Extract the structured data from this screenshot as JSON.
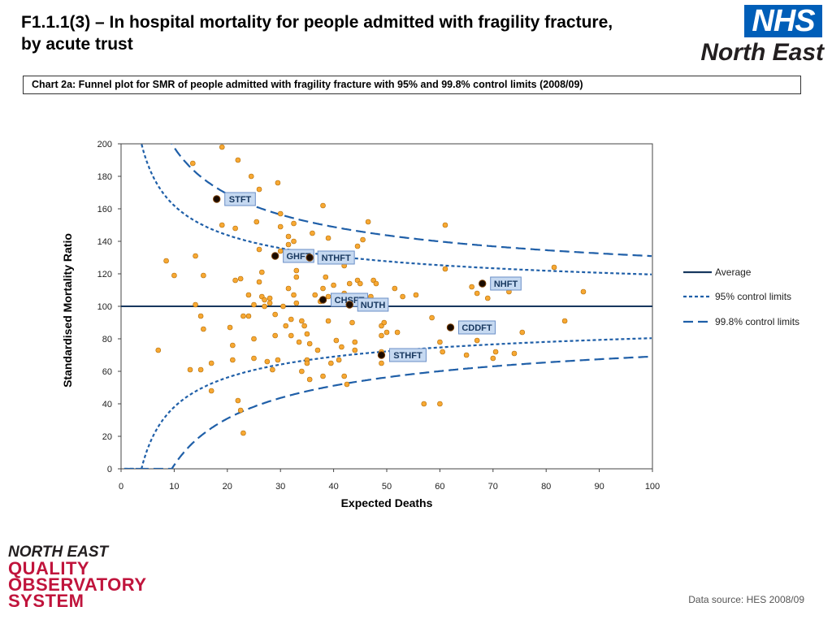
{
  "header": {
    "title_line1": "F1.1.1(3) – In hospital mortality for people admitted with fragility fracture,",
    "title_line2": "by acute trust"
  },
  "logo": {
    "nhs": "NHS",
    "region": "North East"
  },
  "caption": "Chart 2a: Funnel plot for SMR of people admitted with fragility fracture with 95% and 99.8% control limits (2008/09)",
  "footer": {
    "org_lines": [
      "NORTH EAST",
      "QUALITY",
      "OBSERVATORY",
      "SYSTEM"
    ],
    "data_source": "Data source: HES 2008/09"
  },
  "colors": {
    "point_fill": "#F7A833",
    "point_stroke": "#B26A00",
    "highlight_fill": "#1a0b00",
    "line": "#1F5FA8",
    "average": "#17375E",
    "label_bg": "#C6D9F1",
    "label_border": "#6B8FC7"
  },
  "chart_data": {
    "type": "scatter",
    "title": "",
    "xlabel": "Expected Deaths",
    "ylabel": "Standardised Mortality Ratio",
    "xlim": [
      0,
      100
    ],
    "ylim": [
      0,
      200
    ],
    "xticks": [
      "0",
      "10",
      "20",
      "30",
      "40",
      "50",
      "60",
      "70",
      "80",
      "90",
      "100"
    ],
    "yticks": [
      "0",
      "20",
      "40",
      "60",
      "80",
      "100",
      "120",
      "140",
      "160",
      "180",
      "200"
    ],
    "grid": false,
    "legend_position": "right",
    "legend": [
      {
        "label": "Average",
        "style": "solid"
      },
      {
        "label": "95% control limits",
        "style": "short-dash"
      },
      {
        "label": "99.8% control limits",
        "style": "long-dash"
      }
    ],
    "average": 100,
    "control_limits": [
      {
        "name": "95% control limits",
        "z": 1.96
      },
      {
        "name": "99.8% control limits",
        "z": 3.09
      }
    ],
    "highlighted": [
      {
        "label": "STFT",
        "x": 18,
        "y": 166
      },
      {
        "label": "GHFT",
        "x": 29,
        "y": 131
      },
      {
        "label": "NTHFT",
        "x": 35.5,
        "y": 130
      },
      {
        "label": "CHSFT",
        "x": 38,
        "y": 104
      },
      {
        "label": "NUTH",
        "x": 43,
        "y": 101
      },
      {
        "label": "NHFT",
        "x": 68,
        "y": 114
      },
      {
        "label": "CDDFT",
        "x": 62,
        "y": 87
      },
      {
        "label": "STHFT",
        "x": 49,
        "y": 70
      }
    ],
    "points": [
      [
        7,
        73
      ],
      [
        8.5,
        128
      ],
      [
        10,
        119
      ],
      [
        13,
        61
      ],
      [
        13.5,
        188
      ],
      [
        14,
        101
      ],
      [
        14,
        131
      ],
      [
        15,
        61
      ],
      [
        15,
        94
      ],
      [
        15.5,
        86
      ],
      [
        15.5,
        119
      ],
      [
        17,
        48
      ],
      [
        17,
        65
      ],
      [
        19,
        198
      ],
      [
        19,
        150
      ],
      [
        20.5,
        87
      ],
      [
        21,
        76
      ],
      [
        21,
        67
      ],
      [
        21.5,
        116
      ],
      [
        21.5,
        148
      ],
      [
        22,
        42
      ],
      [
        22,
        190
      ],
      [
        22.5,
        36
      ],
      [
        22.5,
        117
      ],
      [
        23,
        94
      ],
      [
        23,
        22
      ],
      [
        24,
        94
      ],
      [
        24,
        107
      ],
      [
        24.5,
        180
      ],
      [
        25,
        80
      ],
      [
        25,
        68
      ],
      [
        25,
        101
      ],
      [
        25.5,
        152
      ],
      [
        26,
        172
      ],
      [
        26,
        135
      ],
      [
        26,
        115
      ],
      [
        26.5,
        121
      ],
      [
        26.5,
        106
      ],
      [
        27,
        100
      ],
      [
        27,
        104
      ],
      [
        27.5,
        66
      ],
      [
        28,
        102
      ],
      [
        28,
        105
      ],
      [
        28.5,
        61
      ],
      [
        29,
        95
      ],
      [
        29,
        82
      ],
      [
        29.5,
        67
      ],
      [
        29.5,
        176
      ],
      [
        30,
        149
      ],
      [
        30,
        157
      ],
      [
        30,
        134
      ],
      [
        30.5,
        100
      ],
      [
        31,
        88
      ],
      [
        31.5,
        138
      ],
      [
        31.5,
        111
      ],
      [
        31.5,
        143
      ],
      [
        32,
        92
      ],
      [
        32,
        82
      ],
      [
        32.5,
        107
      ],
      [
        32.5,
        151
      ],
      [
        32.5,
        140
      ],
      [
        33,
        102
      ],
      [
        33,
        118
      ],
      [
        33,
        122
      ],
      [
        33.5,
        78
      ],
      [
        34,
        91
      ],
      [
        34,
        60
      ],
      [
        34.5,
        88
      ],
      [
        35,
        83
      ],
      [
        35,
        67
      ],
      [
        35,
        65
      ],
      [
        35.5,
        55
      ],
      [
        35.5,
        77
      ],
      [
        36,
        145
      ],
      [
        36.5,
        107
      ],
      [
        37,
        73
      ],
      [
        37.5,
        103
      ],
      [
        38,
        162
      ],
      [
        38,
        111
      ],
      [
        38,
        57
      ],
      [
        38.5,
        118
      ],
      [
        39,
        142
      ],
      [
        39,
        91
      ],
      [
        39.5,
        65
      ],
      [
        40,
        113
      ],
      [
        40,
        102
      ],
      [
        40.5,
        79
      ],
      [
        41,
        67
      ],
      [
        41,
        103
      ],
      [
        41.5,
        75
      ],
      [
        42,
        57
      ],
      [
        42,
        125
      ],
      [
        42,
        108
      ],
      [
        42.5,
        52
      ],
      [
        43,
        102
      ],
      [
        43.5,
        90
      ],
      [
        44,
        78
      ],
      [
        44,
        73
      ],
      [
        44.5,
        137
      ],
      [
        44.5,
        116
      ],
      [
        45,
        114
      ],
      [
        45.5,
        141
      ],
      [
        45.5,
        101
      ],
      [
        46.5,
        152
      ],
      [
        47,
        106
      ],
      [
        47.5,
        116
      ],
      [
        48,
        114
      ],
      [
        49,
        65
      ],
      [
        49,
        72
      ],
      [
        49,
        82
      ],
      [
        49,
        88
      ],
      [
        49.5,
        90
      ],
      [
        50,
        84
      ],
      [
        51.5,
        111
      ],
      [
        52,
        84
      ],
      [
        53,
        106
      ],
      [
        55.5,
        107
      ],
      [
        57,
        40
      ],
      [
        58.5,
        93
      ],
      [
        60,
        40
      ],
      [
        60,
        78
      ],
      [
        60.5,
        72
      ],
      [
        61,
        150
      ],
      [
        61,
        123
      ],
      [
        65,
        70
      ],
      [
        66,
        112
      ],
      [
        67,
        79
      ],
      [
        67,
        108
      ],
      [
        69,
        105
      ],
      [
        70,
        68
      ],
      [
        70.5,
        72
      ],
      [
        74,
        71
      ],
      [
        75.5,
        84
      ],
      [
        81.5,
        124
      ],
      [
        83.5,
        91
      ],
      [
        87,
        109
      ],
      [
        73,
        109
      ],
      [
        39,
        106
      ],
      [
        43,
        114
      ]
    ]
  }
}
